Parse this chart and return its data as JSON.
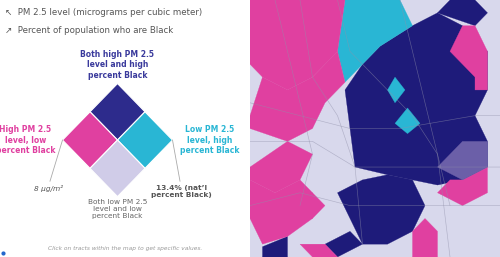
{
  "title_line1": "↖  PM 2.5 level (micrograms per cubic meter)",
  "title_line2": "↗  Percent of population who are Black",
  "diamond_top_label": "Both high PM 2.5\nlevel and high\npercent Black",
  "diamond_left_label": "High PM 2.5\nlevel, low\npercent Black",
  "diamond_right_label": "Low PM 2.5\nlevel, high\npercent Black",
  "diamond_bottom_label": "Both low PM 2.5\nlevel and low\npercent Black",
  "bottom_left_label": "8 μg/m²",
  "bottom_right_label": "13.4% (nat’l\npercent Black)",
  "footer": "Click on tracts within the map to get specific values.",
  "color_top": "#2d2b8c",
  "color_left": "#e040a0",
  "color_right": "#29b6d4",
  "color_bottom": "#d0cce8",
  "bg_color": "#ffffff",
  "label_color_top": "#3a3a9c",
  "label_color_left": "#e040a0",
  "label_color_right": "#29b6d4",
  "title_color": "#555555",
  "footer_color": "#999999",
  "map_dark_blue": "#1e1b7a",
  "map_pink": "#e040a0",
  "map_cyan": "#29b6d4",
  "map_lavender": "#d8d8ec",
  "map_med_purple": "#6b5fa8",
  "map_bg": "#e0e0ea"
}
